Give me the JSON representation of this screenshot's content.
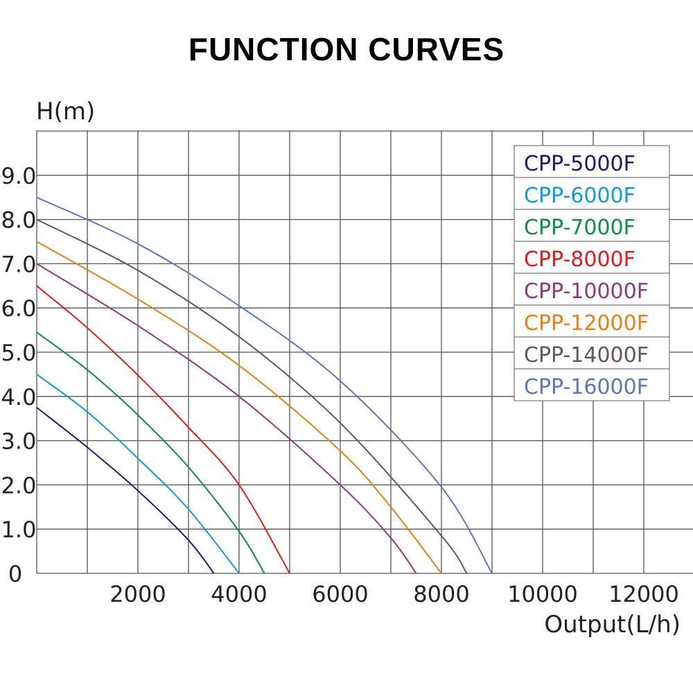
{
  "chart_data": {
    "type": "line",
    "title": "FUNCTION CURVES",
    "xlabel": "Output(L/h)",
    "ylabel": "H(m)",
    "xlim": [
      0,
      13000
    ],
    "ylim": [
      0,
      10
    ],
    "grid": true,
    "legend_placement": "top-right",
    "x_ticks": [
      2000,
      4000,
      6000,
      8000,
      10000,
      12000
    ],
    "x_tick_labels": [
      "2000",
      "4000",
      "6000",
      "8000",
      "10000",
      "12000"
    ],
    "y_ticks": [
      0,
      1,
      2,
      3,
      4,
      5,
      6,
      7,
      8,
      9
    ],
    "y_tick_labels": [
      "0",
      "1.0",
      "2.0",
      "3.0",
      "4.0",
      "5.0",
      "6.0",
      "7.0",
      "8.0",
      "9.0"
    ],
    "series": [
      {
        "name": "CPP-5000F",
        "color": "#1c1a6e",
        "x": [
          0,
          1000,
          2000,
          3000,
          3500
        ],
        "y": [
          3.75,
          2.85,
          1.87,
          0.75,
          0
        ]
      },
      {
        "name": "CPP-6000F",
        "color": "#0f9be0",
        "x": [
          0,
          1000,
          2000,
          3000,
          4000
        ],
        "y": [
          4.5,
          3.65,
          2.6,
          1.45,
          0
        ]
      },
      {
        "name": "CPP-7000F",
        "color": "#0a9040",
        "x": [
          0,
          1000,
          2000,
          3000,
          4000,
          4500
        ],
        "y": [
          5.45,
          4.6,
          3.58,
          2.4,
          0.95,
          0
        ]
      },
      {
        "name": "CPP-8000F",
        "color": "#e3191b",
        "x": [
          0,
          1000,
          2000,
          3000,
          4000,
          5000
        ],
        "y": [
          6.5,
          5.55,
          4.48,
          3.3,
          2.0,
          0
        ]
      },
      {
        "name": "CPP-10000F",
        "color": "#8e3a7e",
        "x": [
          0,
          2000,
          4000,
          6000,
          7000,
          7500
        ],
        "y": [
          7.0,
          5.6,
          4.0,
          2.0,
          0.8,
          0
        ]
      },
      {
        "name": "CPP-12000F",
        "color": "#ef7d10",
        "x": [
          0,
          2000,
          4000,
          6000,
          7000,
          8000
        ],
        "y": [
          7.5,
          6.2,
          4.7,
          2.77,
          1.5,
          0
        ]
      },
      {
        "name": "CPP-14000F",
        "color": "#605a55",
        "x": [
          0,
          2000,
          4000,
          6000,
          8000,
          8500
        ],
        "y": [
          8.0,
          6.85,
          5.35,
          3.4,
          0.85,
          0
        ]
      },
      {
        "name": "CPP-16000F",
        "color": "#5b78b8",
        "x": [
          0,
          2000,
          4000,
          6000,
          8000,
          9000
        ],
        "y": [
          8.5,
          7.45,
          6.05,
          4.35,
          1.95,
          0
        ]
      }
    ]
  }
}
